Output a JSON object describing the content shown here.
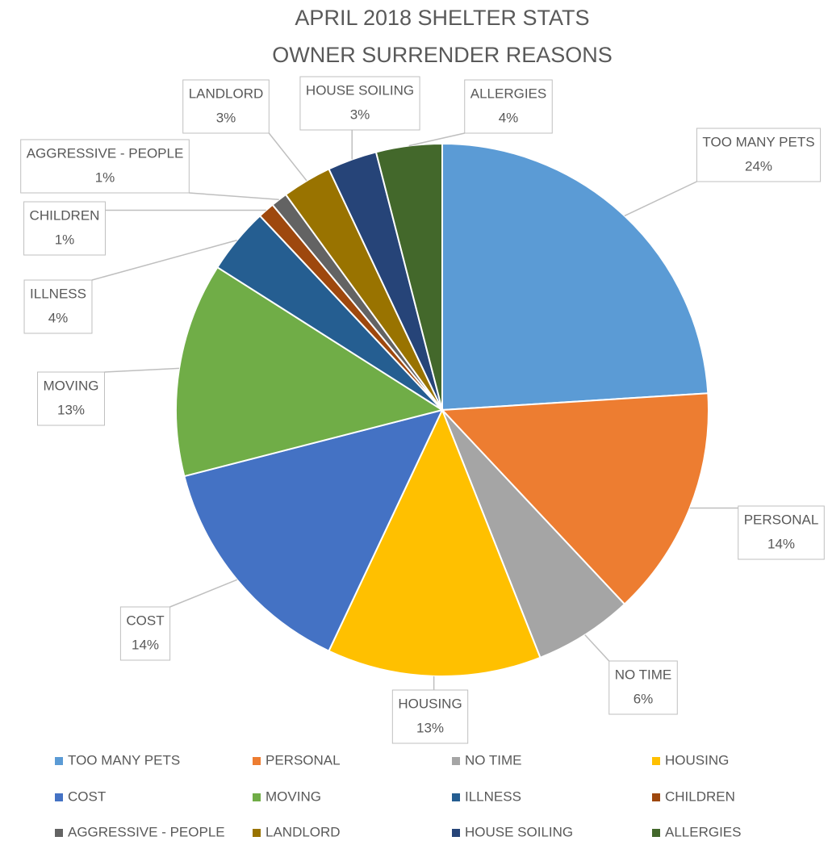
{
  "chart_data": {
    "type": "pie",
    "title": [
      "APRIL 2018 SHELTER STATS",
      "OWNER SURRENDER REASONS"
    ],
    "categories": [
      "TOO MANY PETS",
      "PERSONAL",
      "NO TIME",
      "HOUSING",
      "COST",
      "MOVING",
      "ILLNESS",
      "CHILDREN",
      "AGGRESSIVE - PEOPLE",
      "LANDLORD",
      "HOUSE SOILING",
      "ALLERGIES"
    ],
    "values": [
      24,
      14,
      6,
      13,
      14,
      13,
      4,
      1,
      1,
      3,
      3,
      4
    ],
    "value_labels": [
      "24%",
      "14%",
      "6%",
      "13%",
      "14%",
      "13%",
      "4%",
      "1%",
      "1%",
      "3%",
      "3%",
      "4%"
    ],
    "colors": [
      "#5b9bd5",
      "#ed7d31",
      "#a5a5a5",
      "#ffc000",
      "#4472c4",
      "#70ad47",
      "#255e91",
      "#9e480e",
      "#636363",
      "#997300",
      "#264478",
      "#43682b"
    ],
    "legend": "bottom"
  }
}
